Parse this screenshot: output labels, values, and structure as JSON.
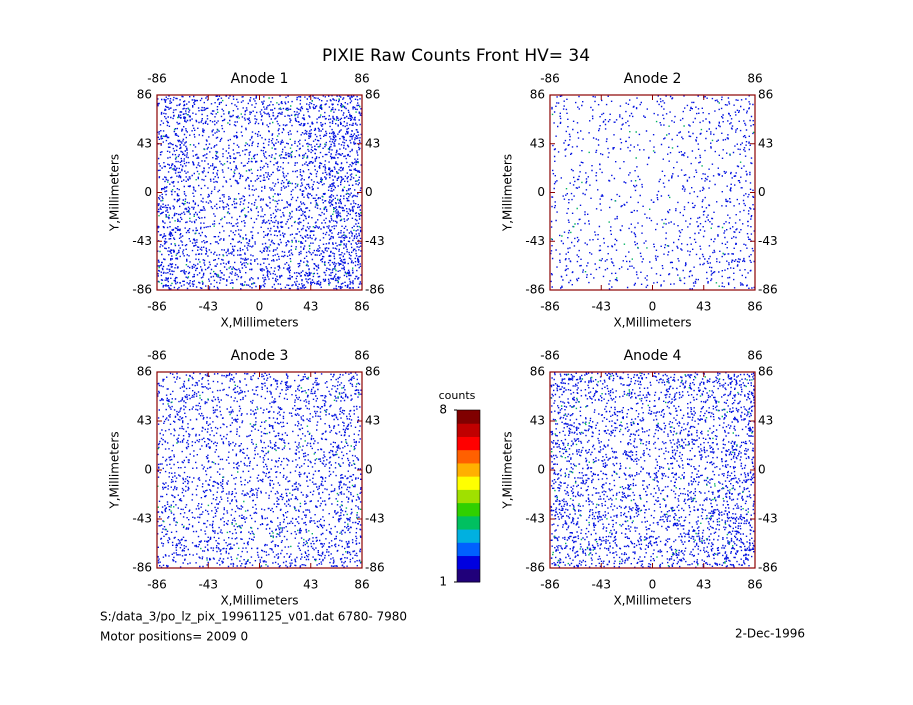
{
  "title": "PIXIE Raw Counts Front HV= 34",
  "footer": {
    "file": "S:/data_3/po_lz_pix_19961125_v01.dat   6780- 7980",
    "motor": "Motor positions= 2009 0",
    "date": "2-Dec-1996"
  },
  "colorbar": {
    "label": "counts",
    "lim": [
      1,
      8
    ],
    "ticks": [
      1,
      8
    ],
    "colors": [
      "#20007a",
      "#0000e0",
      "#0060ff",
      "#00b0e0",
      "#00c060",
      "#30d000",
      "#a0e000",
      "#ffff00",
      "#ffb000",
      "#ff6000",
      "#ff0000",
      "#c00000",
      "#800000"
    ]
  },
  "chart_data": [
    {
      "type": "density",
      "title": "Anode 1",
      "xlabel": "X,Millimeters",
      "ylabel": "Y,Millimeters",
      "xlim": [
        -86,
        86
      ],
      "ylim": [
        -86,
        86
      ],
      "xticks": [
        -86,
        -43,
        0,
        43,
        86
      ],
      "yticks": [
        -86,
        -43,
        0,
        43,
        86
      ],
      "x2ticks": [
        -86,
        86
      ],
      "y2ticks": [
        -86,
        -43,
        0,
        43,
        86
      ],
      "color": "#0010e0",
      "density": [
        [
          40,
          30,
          28,
          32,
          38,
          50
        ],
        [
          38,
          26,
          24,
          30,
          36,
          48
        ],
        [
          36,
          25,
          24,
          28,
          34,
          46
        ],
        [
          38,
          26,
          25,
          30,
          36,
          48
        ],
        [
          40,
          28,
          27,
          32,
          38,
          50
        ],
        [
          45,
          34,
          32,
          36,
          42,
          55
        ]
      ]
    },
    {
      "type": "density",
      "title": "Anode 2",
      "xlabel": "X,Millimeters",
      "ylabel": "Y,Millimeters",
      "xlim": [
        -86,
        86
      ],
      "ylim": [
        -86,
        86
      ],
      "xticks": [
        -86,
        -43,
        0,
        43,
        86
      ],
      "yticks": [
        -86,
        -43,
        0,
        43,
        86
      ],
      "x2ticks": [
        -86,
        86
      ],
      "y2ticks": [
        -86,
        -43,
        0,
        43,
        86
      ],
      "color": "#0010e0",
      "density": [
        [
          12,
          10,
          10,
          12,
          14,
          18
        ],
        [
          10,
          8,
          8,
          10,
          12,
          16
        ],
        [
          10,
          8,
          7,
          9,
          12,
          15
        ],
        [
          11,
          9,
          8,
          10,
          12,
          16
        ],
        [
          12,
          10,
          9,
          11,
          14,
          18
        ],
        [
          14,
          12,
          10,
          12,
          15,
          20
        ]
      ]
    },
    {
      "type": "density",
      "title": "Anode 3",
      "xlabel": "X,Millimeters",
      "ylabel": "Y,Millimeters",
      "xlim": [
        -86,
        86
      ],
      "ylim": [
        -86,
        86
      ],
      "xticks": [
        -86,
        -43,
        0,
        43,
        86
      ],
      "yticks": [
        -86,
        -43,
        0,
        43,
        86
      ],
      "x2ticks": [
        -86,
        86
      ],
      "y2ticks": [
        -86,
        -43,
        0,
        43,
        86
      ],
      "color": "#0010e0",
      "density": [
        [
          26,
          24,
          24,
          26,
          28,
          30
        ],
        [
          24,
          22,
          22,
          24,
          26,
          28
        ],
        [
          24,
          22,
          21,
          23,
          26,
          28
        ],
        [
          25,
          22,
          22,
          24,
          26,
          30
        ],
        [
          26,
          24,
          23,
          25,
          28,
          30
        ],
        [
          28,
          26,
          25,
          26,
          30,
          32
        ]
      ]
    },
    {
      "type": "density",
      "title": "Anode 4",
      "xlabel": "X,Millimeters",
      "ylabel": "Y,Millimeters",
      "xlim": [
        -86,
        86
      ],
      "ylim": [
        -86,
        86
      ],
      "xticks": [
        -86,
        -43,
        0,
        43,
        86
      ],
      "yticks": [
        -86,
        -43,
        0,
        43,
        86
      ],
      "x2ticks": [
        -86,
        86
      ],
      "y2ticks": [
        -86,
        -43,
        0,
        43,
        86
      ],
      "color": "#0010e0",
      "density": [
        [
          38,
          32,
          30,
          32,
          34,
          40
        ],
        [
          34,
          28,
          26,
          28,
          30,
          36
        ],
        [
          32,
          27,
          25,
          27,
          30,
          36
        ],
        [
          33,
          28,
          26,
          28,
          31,
          38
        ],
        [
          35,
          30,
          28,
          30,
          33,
          40
        ],
        [
          40,
          34,
          32,
          34,
          36,
          44
        ]
      ]
    }
  ]
}
